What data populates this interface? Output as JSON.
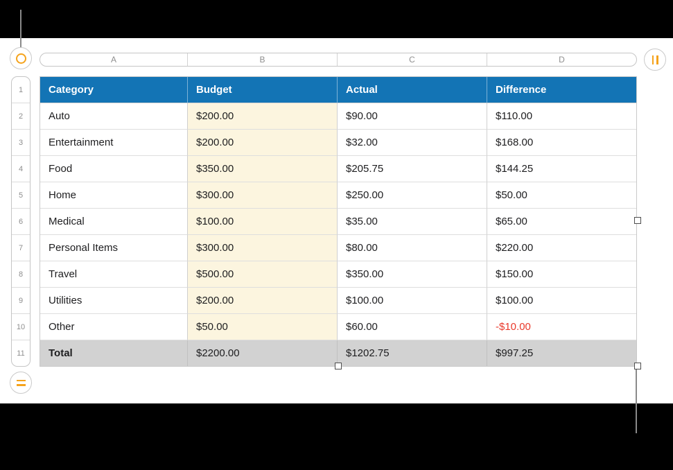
{
  "column_bar": {
    "letters": [
      "A",
      "B",
      "C",
      "D"
    ]
  },
  "row_bar": {
    "numbers": [
      "1",
      "2",
      "3",
      "4",
      "5",
      "6",
      "7",
      "8",
      "9",
      "10",
      "11"
    ]
  },
  "table": {
    "headers": [
      "Category",
      "Budget",
      "Actual",
      "Difference"
    ],
    "rows": [
      {
        "category": "Auto",
        "budget": "$200.00",
        "actual": "$90.00",
        "difference": "$110.00"
      },
      {
        "category": "Entertainment",
        "budget": "$200.00",
        "actual": "$32.00",
        "difference": "$168.00"
      },
      {
        "category": "Food",
        "budget": "$350.00",
        "actual": "$205.75",
        "difference": "$144.25"
      },
      {
        "category": "Home",
        "budget": "$300.00",
        "actual": "$250.00",
        "difference": "$50.00"
      },
      {
        "category": "Medical",
        "budget": "$100.00",
        "actual": "$35.00",
        "difference": "$65.00"
      },
      {
        "category": "Personal Items",
        "budget": "$300.00",
        "actual": "$80.00",
        "difference": "$220.00"
      },
      {
        "category": "Travel",
        "budget": "$500.00",
        "actual": "$350.00",
        "difference": "$150.00"
      },
      {
        "category": "Utilities",
        "budget": "$200.00",
        "actual": "$100.00",
        "difference": "$100.00"
      },
      {
        "category": "Other",
        "budget": "$50.00",
        "actual": "$60.00",
        "difference": "-$10.00"
      }
    ],
    "total_row": {
      "category": "Total",
      "budget": "$2200.00",
      "actual": "$1202.75",
      "difference": "$997.25"
    }
  },
  "handles": {
    "table_select": "circle-ring-icon",
    "add_columns": "double-vertical-bars-icon",
    "add_rows": "double-horizontal-bars-icon"
  },
  "colors": {
    "header_blue": "#1374B5",
    "budget_column_fill": "#FCF5DF",
    "total_row_fill": "#D2D2D2",
    "negative_value_red": "#E9392B",
    "handle_accent_orange": "#F5A31C"
  }
}
